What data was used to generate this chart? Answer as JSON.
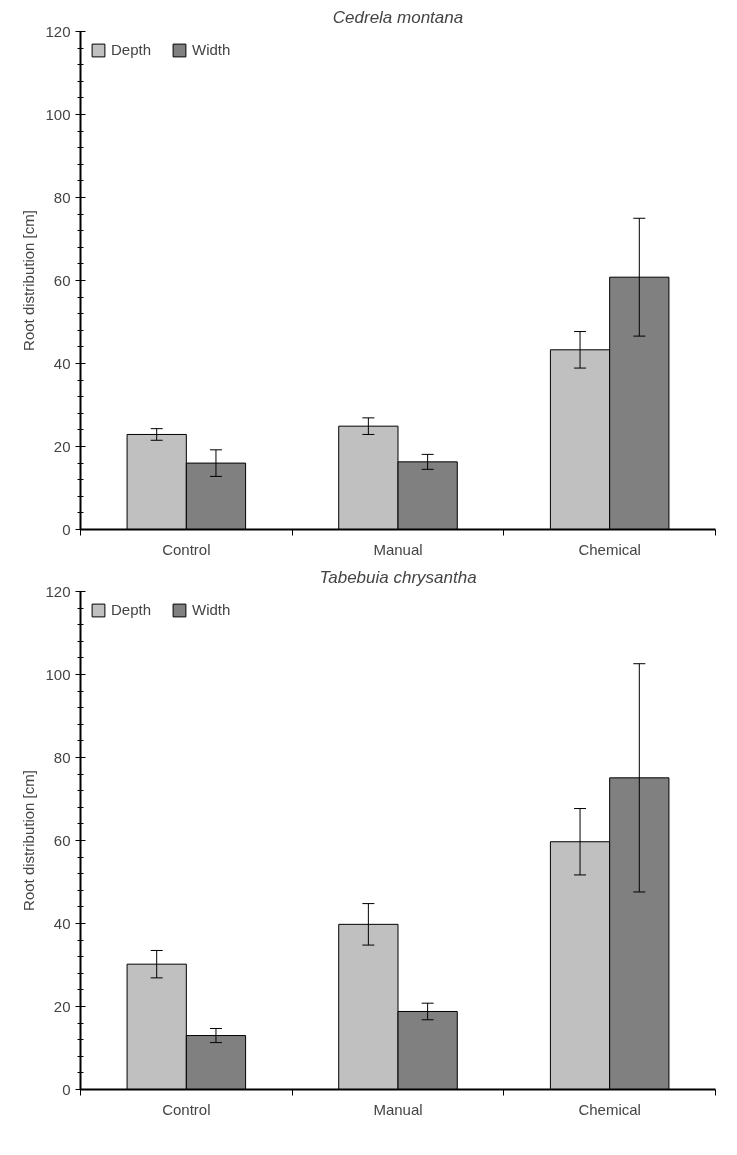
{
  "chart_data": [
    {
      "type": "bar",
      "title": "Cedrela montana",
      "ylabel": "Root distribution [cm]",
      "categories": [
        "Control",
        "Manual",
        "Chemical"
      ],
      "ylim": [
        0,
        120
      ],
      "yticks": [
        0,
        20,
        40,
        60,
        80,
        100,
        120
      ],
      "grid": false,
      "legend": "top left",
      "series": [
        {
          "name": "Depth",
          "color": "#c0c0c0",
          "values": [
            22.9,
            24.9,
            43.3
          ],
          "errors": [
            1.4,
            2,
            4.4
          ]
        },
        {
          "name": "Width",
          "color": "#808080",
          "values": [
            16,
            16.3,
            60.8
          ],
          "errors": [
            3.2,
            1.8,
            14.2
          ]
        }
      ]
    },
    {
      "type": "bar",
      "title": "Tabebuia chrysantha",
      "ylabel": "Root distribution [cm]",
      "categories": [
        "Control",
        "Manual",
        "Chemical"
      ],
      "ylim": [
        0,
        120
      ],
      "yticks": [
        0,
        20,
        40,
        60,
        80,
        100,
        120
      ],
      "grid": false,
      "legend": "top left",
      "series": [
        {
          "name": "Depth",
          "color": "#c0c0c0",
          "values": [
            30.2,
            39.8,
            59.7
          ],
          "errors": [
            3.3,
            5,
            8
          ]
        },
        {
          "name": "Width",
          "color": "#808080",
          "values": [
            13,
            18.8,
            75.1
          ],
          "errors": [
            1.7,
            2,
            27.5
          ]
        }
      ]
    }
  ]
}
